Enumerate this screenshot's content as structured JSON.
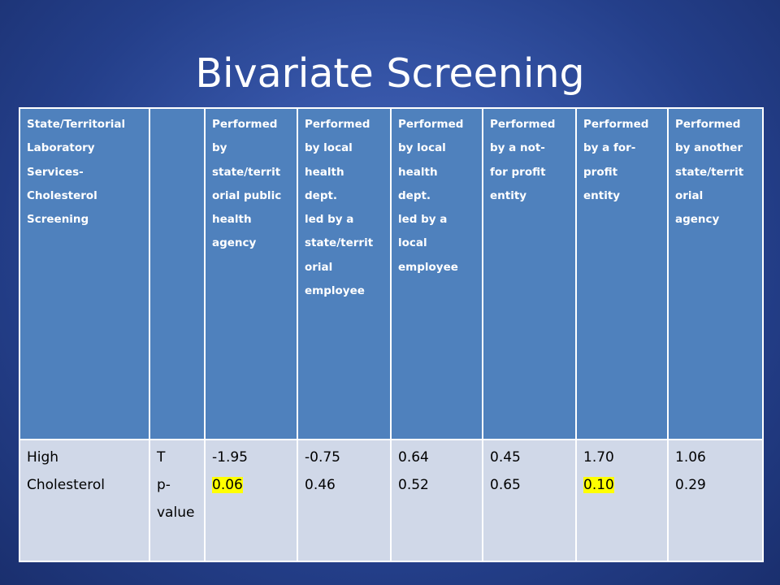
{
  "slide": {
    "title": "Bivariate Screening"
  },
  "table": {
    "header": [
      [
        "State/Territorial",
        "Laboratory",
        "Services-",
        "Cholesterol",
        "Screening"
      ],
      [],
      [
        "Performed",
        "by",
        "state/territ",
        "orial public",
        "health",
        "agency"
      ],
      [
        "Performed",
        "by local",
        "health",
        "dept.",
        "led by a",
        "state/territ",
        "orial",
        "employee"
      ],
      [
        "Performed",
        "by local",
        "health",
        "dept.",
        "led by a",
        "local",
        "employee"
      ],
      [
        "Performed",
        "by a not-",
        "for profit",
        "entity"
      ],
      [
        "Performed",
        "by a for-",
        "profit",
        "entity"
      ],
      [
        "Performed",
        "by another",
        "state/territ",
        "orial",
        "agency"
      ]
    ],
    "row": {
      "label": [
        "High",
        "Cholesterol"
      ],
      "stats": [
        "T",
        "p-",
        "value"
      ],
      "values": [
        {
          "t": "-1.95",
          "p": "0.06",
          "highlight": true
        },
        {
          "t": "-0.75",
          "p": "0.46",
          "highlight": false
        },
        {
          "t": "0.64",
          "p": "0.52",
          "highlight": false
        },
        {
          "t": "0.45",
          "p": "0.65",
          "highlight": false
        },
        {
          "t": "1.70",
          "p": "0.10",
          "highlight": true
        },
        {
          "t": "1.06",
          "p": "0.29",
          "highlight": false
        }
      ]
    },
    "colors": {
      "header_bg": "#4f81bd",
      "row_bg": "#d0d8e8",
      "highlight": "#ffff00"
    }
  }
}
